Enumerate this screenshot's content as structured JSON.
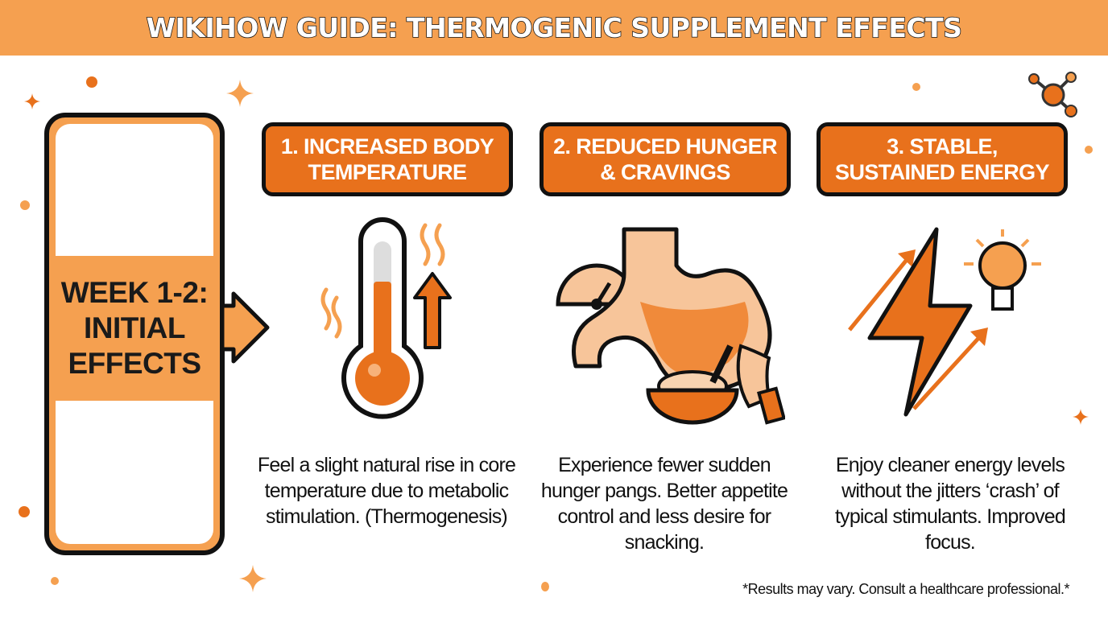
{
  "title": "WIKIHOW GUIDE: THERMOGENIC SUPPLEMENT EFFECTS",
  "week": {
    "label": "WEEK 1-2: INITIAL EFFECTS"
  },
  "steps": [
    {
      "title": "1. INCREASED BODY TEMPERATURE",
      "icon": "thermometer-icon",
      "description": "Feel a slight natural rise in core temperature due to metabolic stimulation. (Thermogenesis)"
    },
    {
      "title": "2. REDUCED HUNGER & CRAVINGS",
      "icon": "stomach-icon",
      "description": "Experience fewer sudden hunger pangs. Better appetite control and less desire for snacking."
    },
    {
      "title": "3. STABLE, SUSTAINED ENERGY",
      "icon": "lightning-bolt-icon",
      "description": "Enjoy cleaner energy levels without the jitters ‘crash’ of typical stimulants. Improved focus."
    }
  ],
  "footnote": "*Results may vary. Consult a healthcare professional.*",
  "colors": {
    "banner": "#f5a050",
    "accent": "#e8711c",
    "outline": "#111111"
  }
}
